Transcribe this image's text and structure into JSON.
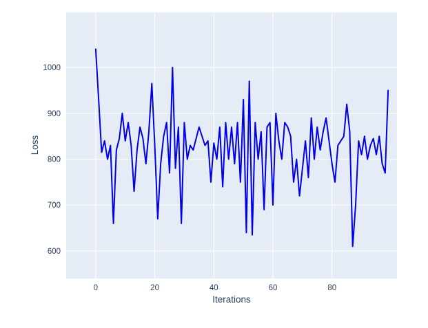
{
  "figure": {
    "background": "#ffffff",
    "plot_background": "#e5ecf6",
    "grid_color": "#ffffff",
    "text_color": "#2a3f5f",
    "line_color": "#0000e6"
  },
  "chart_data": {
    "type": "line",
    "title": "",
    "xlabel": "Iterations",
    "ylabel": "Loss",
    "legend": false,
    "grid": true,
    "xlim": [
      -10,
      102
    ],
    "ylim": [
      540,
      1120
    ],
    "xticks": [
      0,
      20,
      40,
      60,
      80
    ],
    "yticks": [
      600,
      700,
      800,
      900,
      1000
    ],
    "x": [
      0,
      1,
      2,
      3,
      4,
      5,
      6,
      7,
      8,
      9,
      10,
      11,
      12,
      13,
      14,
      15,
      16,
      17,
      18,
      19,
      20,
      21,
      22,
      23,
      24,
      25,
      26,
      27,
      28,
      29,
      30,
      31,
      32,
      33,
      34,
      35,
      36,
      37,
      38,
      39,
      40,
      41,
      42,
      43,
      44,
      45,
      46,
      47,
      48,
      49,
      50,
      51,
      52,
      53,
      54,
      55,
      56,
      57,
      58,
      59,
      60,
      61,
      62,
      63,
      64,
      65,
      66,
      67,
      68,
      69,
      70,
      71,
      72,
      73,
      74,
      75,
      76,
      77,
      78,
      79,
      80,
      81,
      82,
      83,
      84,
      85,
      86,
      87,
      88,
      89,
      90,
      91,
      92,
      93,
      94,
      95,
      96,
      97,
      98,
      99
    ],
    "values": [
      1040,
      930,
      815,
      840,
      800,
      830,
      660,
      820,
      845,
      900,
      840,
      880,
      830,
      730,
      820,
      870,
      845,
      790,
      860,
      965,
      830,
      670,
      790,
      850,
      880,
      770,
      1000,
      780,
      870,
      660,
      880,
      800,
      830,
      820,
      845,
      870,
      850,
      830,
      840,
      750,
      835,
      800,
      870,
      740,
      880,
      800,
      870,
      790,
      880,
      750,
      930,
      640,
      970,
      635,
      880,
      800,
      860,
      690,
      870,
      880,
      700,
      900,
      840,
      800,
      880,
      870,
      850,
      750,
      800,
      720,
      780,
      840,
      760,
      890,
      800,
      870,
      820,
      860,
      890,
      840,
      790,
      750,
      830,
      840,
      850,
      920,
      860,
      610,
      700,
      840,
      810,
      850,
      800,
      830,
      845,
      810,
      850,
      790,
      770,
      950
    ]
  }
}
